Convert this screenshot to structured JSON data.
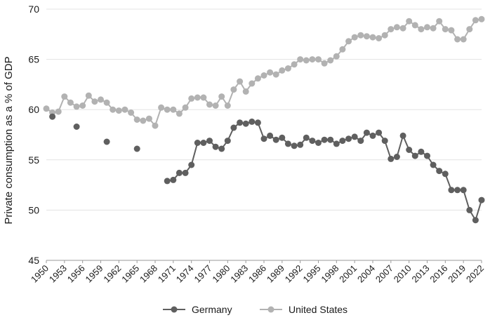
{
  "chart_data": {
    "type": "line",
    "title": "",
    "xlabel": "",
    "ylabel": "Private consumption as a % of GDP",
    "xlim": [
      1950,
      2022
    ],
    "ylim": [
      45,
      70
    ],
    "yticks": [
      45,
      50,
      55,
      60,
      65,
      70
    ],
    "xticks": [
      1950,
      1953,
      1956,
      1959,
      1962,
      1965,
      1968,
      1971,
      1974,
      1977,
      1980,
      1983,
      1986,
      1989,
      1992,
      1995,
      1998,
      2001,
      2004,
      2007,
      2010,
      2013,
      2016,
      2019,
      2022
    ],
    "grid": "horizontal",
    "legend_position": "bottom",
    "series": [
      {
        "name": "Germany",
        "color": "#5f5f5f",
        "x": [
          1951,
          1955,
          1960,
          1965,
          1970,
          1971,
          1972,
          1973,
          1974,
          1975,
          1976,
          1977,
          1978,
          1979,
          1980,
          1981,
          1982,
          1983,
          1984,
          1985,
          1986,
          1987,
          1988,
          1989,
          1990,
          1991,
          1992,
          1993,
          1994,
          1995,
          1996,
          1997,
          1998,
          1999,
          2000,
          2001,
          2002,
          2003,
          2004,
          2005,
          2006,
          2007,
          2008,
          2009,
          2010,
          2011,
          2012,
          2013,
          2014,
          2015,
          2016,
          2017,
          2018,
          2019,
          2020,
          2021,
          2022
        ],
        "values": [
          59.3,
          58.3,
          56.8,
          56.1,
          52.9,
          53.0,
          53.7,
          53.7,
          54.5,
          56.7,
          56.7,
          56.9,
          56.3,
          56.1,
          56.9,
          58.2,
          58.7,
          58.6,
          58.8,
          58.7,
          57.1,
          57.4,
          57.0,
          57.2,
          56.6,
          56.4,
          56.5,
          57.2,
          56.9,
          56.7,
          57.0,
          57.0,
          56.6,
          56.9,
          57.1,
          57.3,
          56.9,
          57.7,
          57.4,
          57.7,
          56.9,
          55.1,
          55.3,
          57.4,
          56.0,
          55.4,
          55.8,
          55.4,
          54.5,
          53.9,
          53.6,
          52.0,
          52.0,
          52.0,
          50.0,
          49.0,
          51.0
        ]
      },
      {
        "name": "United States",
        "color": "#b2b2b2",
        "x": [
          1950,
          1951,
          1952,
          1953,
          1954,
          1955,
          1956,
          1957,
          1958,
          1959,
          1960,
          1961,
          1962,
          1963,
          1964,
          1965,
          1966,
          1967,
          1968,
          1969,
          1970,
          1971,
          1972,
          1973,
          1974,
          1975,
          1976,
          1977,
          1978,
          1979,
          1980,
          1981,
          1982,
          1983,
          1984,
          1985,
          1986,
          1987,
          1988,
          1989,
          1990,
          1991,
          1992,
          1993,
          1994,
          1995,
          1996,
          1997,
          1998,
          1999,
          2000,
          2001,
          2002,
          2003,
          2004,
          2005,
          2006,
          2007,
          2008,
          2009,
          2010,
          2011,
          2012,
          2013,
          2014,
          2015,
          2016,
          2017,
          2018,
          2019,
          2020,
          2021,
          2022
        ],
        "values": [
          60.1,
          59.7,
          59.8,
          61.3,
          60.7,
          60.3,
          60.4,
          61.4,
          60.8,
          61.0,
          60.7,
          60.0,
          59.9,
          60.0,
          59.7,
          59.0,
          58.9,
          59.1,
          58.4,
          60.2,
          60.0,
          60.0,
          59.6,
          60.2,
          61.1,
          61.2,
          61.2,
          60.5,
          60.4,
          61.3,
          60.4,
          62.0,
          62.8,
          61.8,
          62.6,
          63.1,
          63.4,
          63.7,
          63.5,
          63.9,
          64.1,
          64.5,
          65.0,
          64.9,
          65.0,
          65.0,
          64.6,
          64.9,
          65.3,
          66.0,
          66.8,
          67.2,
          67.4,
          67.3,
          67.2,
          67.1,
          67.4,
          68.0,
          68.2,
          68.1,
          68.8,
          68.4,
          68.0,
          68.2,
          68.1,
          68.8,
          68.0,
          67.9,
          67.0,
          67.0,
          68.0,
          68.9,
          69.0
        ]
      }
    ]
  }
}
